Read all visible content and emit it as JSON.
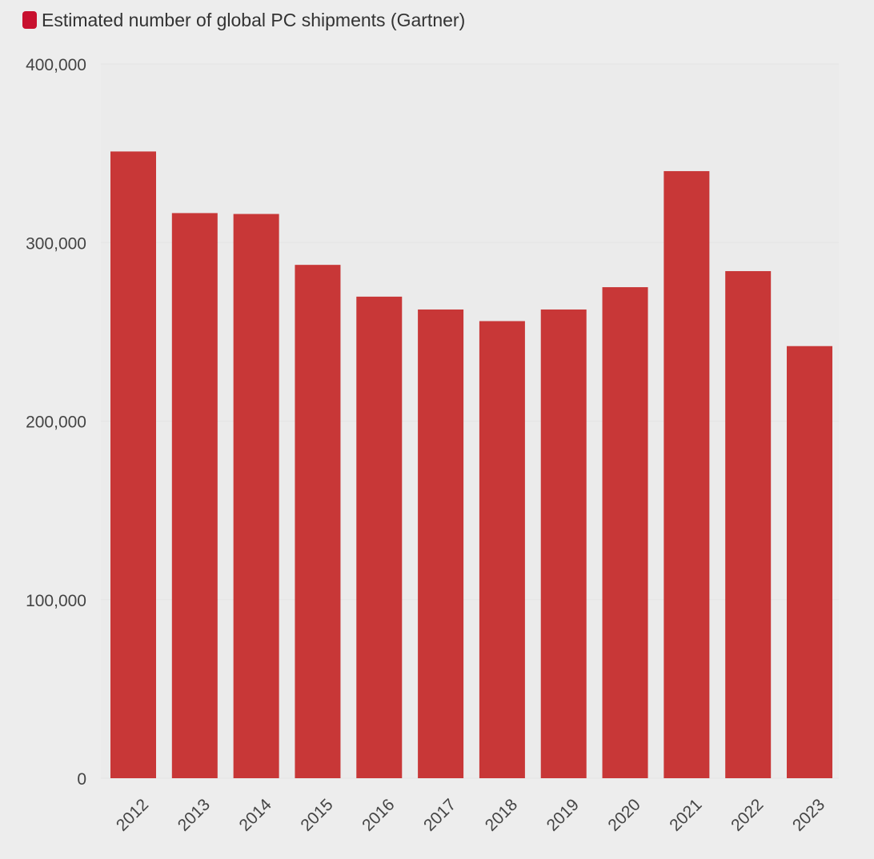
{
  "colors": {
    "background": "#ededed",
    "plot_background": "#ebebeb",
    "gridline": "#e4e4e4",
    "bar": "#c83737",
    "legend_swatch": "#c8102e",
    "text": "#444444"
  },
  "legend": {
    "label": "Estimated number of global PC shipments (Gartner)"
  },
  "chart_data": {
    "type": "bar",
    "title": "",
    "xlabel": "",
    "ylabel": "",
    "ylim": [
      0,
      400000
    ],
    "y_ticks": [
      0,
      100000,
      200000,
      300000,
      400000
    ],
    "y_tick_labels": [
      "0",
      "100,000",
      "200,000",
      "300,000",
      "400,000"
    ],
    "categories": [
      "2012",
      "2013",
      "2014",
      "2015",
      "2016",
      "2017",
      "2018",
      "2019",
      "2020",
      "2021",
      "2022",
      "2023"
    ],
    "series": [
      {
        "name": "Estimated number of global PC shipments (Gartner)",
        "values": [
          351000,
          316500,
          316000,
          287500,
          269700,
          262500,
          256000,
          262500,
          275000,
          340000,
          284000,
          242000
        ]
      }
    ],
    "x_tick_rotation": "-45deg",
    "grid": true,
    "legend_position": "top-left"
  }
}
